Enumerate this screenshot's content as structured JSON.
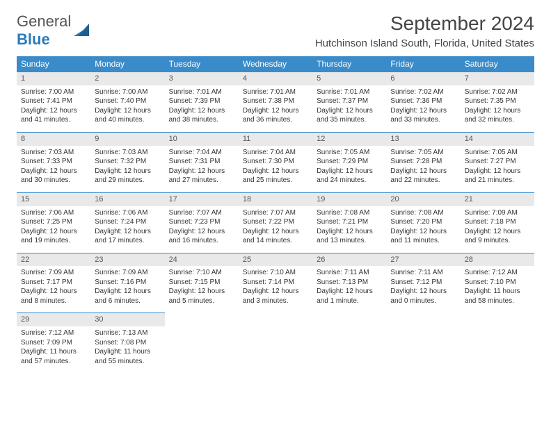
{
  "brand": {
    "part1": "General",
    "part2": "Blue"
  },
  "title": "September 2024",
  "location": "Hutchinson Island South, Florida, United States",
  "colors": {
    "header_bg": "#3a8bc9",
    "daynum_bg": "#e9e9e9",
    "border": "#3a8bc9"
  },
  "weekdays": [
    "Sunday",
    "Monday",
    "Tuesday",
    "Wednesday",
    "Thursday",
    "Friday",
    "Saturday"
  ],
  "days": [
    {
      "n": "1",
      "sunrise": "Sunrise: 7:00 AM",
      "sunset": "Sunset: 7:41 PM",
      "daylight": "Daylight: 12 hours and 41 minutes."
    },
    {
      "n": "2",
      "sunrise": "Sunrise: 7:00 AM",
      "sunset": "Sunset: 7:40 PM",
      "daylight": "Daylight: 12 hours and 40 minutes."
    },
    {
      "n": "3",
      "sunrise": "Sunrise: 7:01 AM",
      "sunset": "Sunset: 7:39 PM",
      "daylight": "Daylight: 12 hours and 38 minutes."
    },
    {
      "n": "4",
      "sunrise": "Sunrise: 7:01 AM",
      "sunset": "Sunset: 7:38 PM",
      "daylight": "Daylight: 12 hours and 36 minutes."
    },
    {
      "n": "5",
      "sunrise": "Sunrise: 7:01 AM",
      "sunset": "Sunset: 7:37 PM",
      "daylight": "Daylight: 12 hours and 35 minutes."
    },
    {
      "n": "6",
      "sunrise": "Sunrise: 7:02 AM",
      "sunset": "Sunset: 7:36 PM",
      "daylight": "Daylight: 12 hours and 33 minutes."
    },
    {
      "n": "7",
      "sunrise": "Sunrise: 7:02 AM",
      "sunset": "Sunset: 7:35 PM",
      "daylight": "Daylight: 12 hours and 32 minutes."
    },
    {
      "n": "8",
      "sunrise": "Sunrise: 7:03 AM",
      "sunset": "Sunset: 7:33 PM",
      "daylight": "Daylight: 12 hours and 30 minutes."
    },
    {
      "n": "9",
      "sunrise": "Sunrise: 7:03 AM",
      "sunset": "Sunset: 7:32 PM",
      "daylight": "Daylight: 12 hours and 29 minutes."
    },
    {
      "n": "10",
      "sunrise": "Sunrise: 7:04 AM",
      "sunset": "Sunset: 7:31 PM",
      "daylight": "Daylight: 12 hours and 27 minutes."
    },
    {
      "n": "11",
      "sunrise": "Sunrise: 7:04 AM",
      "sunset": "Sunset: 7:30 PM",
      "daylight": "Daylight: 12 hours and 25 minutes."
    },
    {
      "n": "12",
      "sunrise": "Sunrise: 7:05 AM",
      "sunset": "Sunset: 7:29 PM",
      "daylight": "Daylight: 12 hours and 24 minutes."
    },
    {
      "n": "13",
      "sunrise": "Sunrise: 7:05 AM",
      "sunset": "Sunset: 7:28 PM",
      "daylight": "Daylight: 12 hours and 22 minutes."
    },
    {
      "n": "14",
      "sunrise": "Sunrise: 7:05 AM",
      "sunset": "Sunset: 7:27 PM",
      "daylight": "Daylight: 12 hours and 21 minutes."
    },
    {
      "n": "15",
      "sunrise": "Sunrise: 7:06 AM",
      "sunset": "Sunset: 7:25 PM",
      "daylight": "Daylight: 12 hours and 19 minutes."
    },
    {
      "n": "16",
      "sunrise": "Sunrise: 7:06 AM",
      "sunset": "Sunset: 7:24 PM",
      "daylight": "Daylight: 12 hours and 17 minutes."
    },
    {
      "n": "17",
      "sunrise": "Sunrise: 7:07 AM",
      "sunset": "Sunset: 7:23 PM",
      "daylight": "Daylight: 12 hours and 16 minutes."
    },
    {
      "n": "18",
      "sunrise": "Sunrise: 7:07 AM",
      "sunset": "Sunset: 7:22 PM",
      "daylight": "Daylight: 12 hours and 14 minutes."
    },
    {
      "n": "19",
      "sunrise": "Sunrise: 7:08 AM",
      "sunset": "Sunset: 7:21 PM",
      "daylight": "Daylight: 12 hours and 13 minutes."
    },
    {
      "n": "20",
      "sunrise": "Sunrise: 7:08 AM",
      "sunset": "Sunset: 7:20 PM",
      "daylight": "Daylight: 12 hours and 11 minutes."
    },
    {
      "n": "21",
      "sunrise": "Sunrise: 7:09 AM",
      "sunset": "Sunset: 7:18 PM",
      "daylight": "Daylight: 12 hours and 9 minutes."
    },
    {
      "n": "22",
      "sunrise": "Sunrise: 7:09 AM",
      "sunset": "Sunset: 7:17 PM",
      "daylight": "Daylight: 12 hours and 8 minutes."
    },
    {
      "n": "23",
      "sunrise": "Sunrise: 7:09 AM",
      "sunset": "Sunset: 7:16 PM",
      "daylight": "Daylight: 12 hours and 6 minutes."
    },
    {
      "n": "24",
      "sunrise": "Sunrise: 7:10 AM",
      "sunset": "Sunset: 7:15 PM",
      "daylight": "Daylight: 12 hours and 5 minutes."
    },
    {
      "n": "25",
      "sunrise": "Sunrise: 7:10 AM",
      "sunset": "Sunset: 7:14 PM",
      "daylight": "Daylight: 12 hours and 3 minutes."
    },
    {
      "n": "26",
      "sunrise": "Sunrise: 7:11 AM",
      "sunset": "Sunset: 7:13 PM",
      "daylight": "Daylight: 12 hours and 1 minute."
    },
    {
      "n": "27",
      "sunrise": "Sunrise: 7:11 AM",
      "sunset": "Sunset: 7:12 PM",
      "daylight": "Daylight: 12 hours and 0 minutes."
    },
    {
      "n": "28",
      "sunrise": "Sunrise: 7:12 AM",
      "sunset": "Sunset: 7:10 PM",
      "daylight": "Daylight: 11 hours and 58 minutes."
    },
    {
      "n": "29",
      "sunrise": "Sunrise: 7:12 AM",
      "sunset": "Sunset: 7:09 PM",
      "daylight": "Daylight: 11 hours and 57 minutes."
    },
    {
      "n": "30",
      "sunrise": "Sunrise: 7:13 AM",
      "sunset": "Sunset: 7:08 PM",
      "daylight": "Daylight: 11 hours and 55 minutes."
    }
  ]
}
